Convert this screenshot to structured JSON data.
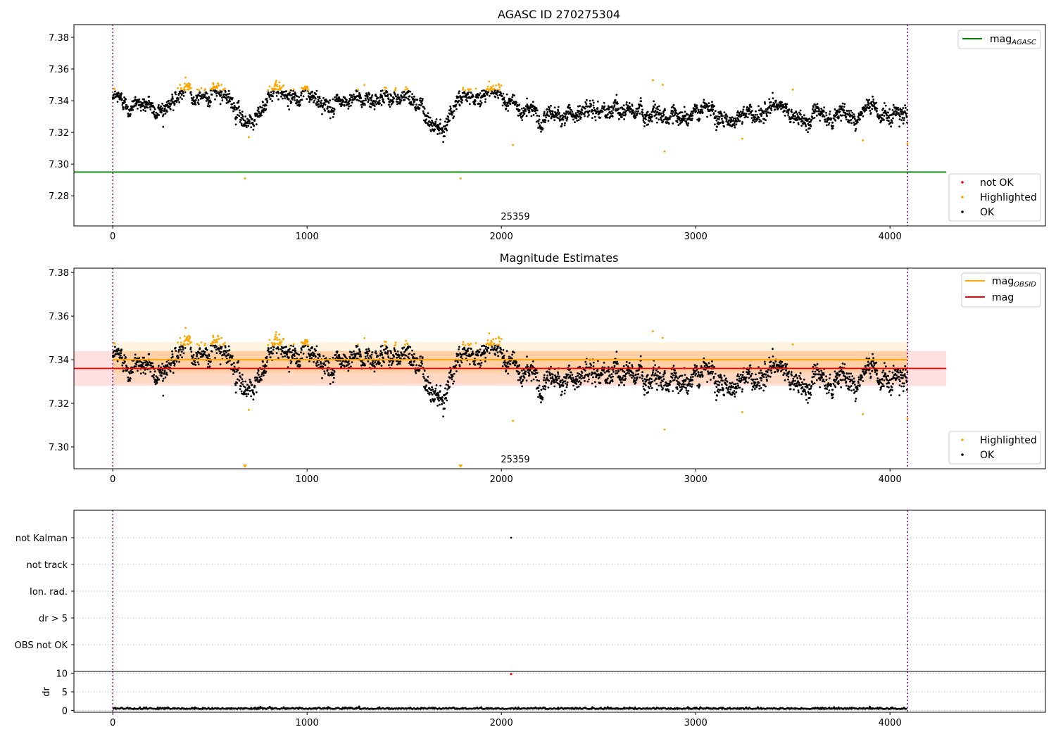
{
  "chart_data": [
    {
      "type": "scatter",
      "title": "AGASC ID 270275304",
      "xlim": [
        -200,
        4800
      ],
      "ylim": [
        7.261,
        7.388
      ],
      "yticks": [
        "7.28",
        "7.30",
        "7.32",
        "7.34",
        "7.36",
        "7.38"
      ],
      "xticks": [
        "0",
        "1000",
        "2000",
        "3000",
        "4000"
      ],
      "obsid_label": "25359",
      "obsid_bounds": [
        0,
        4090
      ],
      "mag_agasc": 7.295,
      "mag_agasc_xrange": [
        -200,
        4290
      ],
      "line_legend": [
        {
          "name": "mag",
          "sub": "AGASC",
          "color": "#008000"
        }
      ],
      "point_legend": [
        {
          "name": "not OK",
          "color": "#ff0000"
        },
        {
          "name": "Highlighted",
          "color": "#ffa500"
        },
        {
          "name": "OK",
          "color": "#000000"
        }
      ],
      "outliers": [
        [
          680,
          7.291
        ],
        [
          1790,
          7.291
        ],
        [
          2060,
          7.312
        ],
        [
          2840,
          7.308
        ],
        [
          3240,
          7.316
        ],
        [
          3860,
          7.315
        ],
        [
          4090,
          7.313
        ],
        [
          700,
          7.317
        ],
        [
          2780,
          7.353
        ],
        [
          2830,
          7.35
        ],
        [
          3500,
          7.347
        ]
      ]
    },
    {
      "type": "scatter",
      "title": "Magnitude Estimates",
      "xlim": [
        -200,
        4800
      ],
      "ylim": [
        7.29,
        7.382
      ],
      "yticks": [
        "7.30",
        "7.32",
        "7.34",
        "7.36",
        "7.38"
      ],
      "xticks": [
        "0",
        "1000",
        "2000",
        "3000",
        "4000"
      ],
      "obsid_label": "25359",
      "obsid_bounds": [
        0,
        4090
      ],
      "mag_obsid": {
        "value": 7.34,
        "band1": [
          7.334,
          7.344
        ],
        "band2": [
          7.329,
          7.348
        ],
        "xrange": [
          0,
          4090
        ],
        "color": "#ffa500"
      },
      "mag": {
        "value": 7.336,
        "band": [
          7.328,
          7.344
        ],
        "xrange": [
          -200,
          4290
        ],
        "color": "#ff0000"
      },
      "line_legend": [
        {
          "name": "mag",
          "sub": "OBSID",
          "color": "#ffa500"
        },
        {
          "name": "mag",
          "sub": "",
          "color": "#ff0000"
        }
      ],
      "point_legend": [
        {
          "name": "Highlighted",
          "color": "#ffa500"
        },
        {
          "name": "OK",
          "color": "#000000"
        }
      ],
      "outliers": [
        [
          2060,
          7.312
        ],
        [
          2840,
          7.308
        ],
        [
          3240,
          7.316
        ],
        [
          3860,
          7.315
        ],
        [
          4090,
          7.313
        ],
        [
          700,
          7.317
        ],
        [
          2780,
          7.353
        ],
        [
          2830,
          7.35
        ],
        [
          3500,
          7.347
        ]
      ],
      "clipped_markers": [
        680,
        1790
      ]
    },
    {
      "type": "scatter",
      "title": "",
      "xlim": [
        -200,
        4800
      ],
      "flag_rows": [
        "not Kalman",
        "not track",
        "Ion. rad.",
        "dr > 5",
        "OBS not OK"
      ],
      "flag_points": [
        {
          "x": 2050,
          "row": "not Kalman"
        }
      ],
      "obsid_bounds": [
        0,
        4090
      ]
    },
    {
      "type": "scatter",
      "title": "",
      "xlim": [
        -200,
        4800
      ],
      "ylim": [
        -0.5,
        10.5
      ],
      "ylabel": "dr",
      "yticks": [
        "0",
        "5",
        "10"
      ],
      "xticks": [
        "0",
        "1000",
        "2000",
        "3000",
        "4000"
      ],
      "dr_outlier": [
        2050,
        9.8
      ],
      "obsid_bounds": [
        0,
        4090
      ]
    }
  ],
  "colors": {
    "ok": "#000000",
    "highlighted": "#ffa500",
    "not_ok": "#ff0000",
    "agasc_line": "#008000",
    "obsid_bound": "#800080"
  }
}
